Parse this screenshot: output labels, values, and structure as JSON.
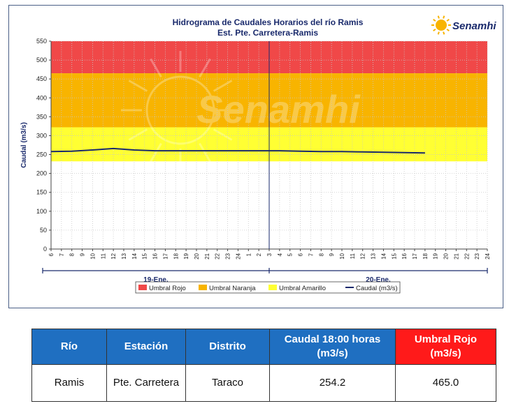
{
  "chart_data": {
    "type": "line",
    "title": "Hidrograma de Caudales Horarios del río Ramis",
    "subtitle": "Est. Pte. Carretera-Ramis",
    "ylabel": "Caudal  (m3/s)",
    "ylim": [
      0,
      550
    ],
    "yticks": [
      0,
      50,
      100,
      150,
      200,
      250,
      300,
      350,
      400,
      450,
      500,
      550
    ],
    "xticks": [
      "6",
      "7",
      "8",
      "9",
      "10",
      "11",
      "12",
      "13",
      "14",
      "15",
      "16",
      "17",
      "18",
      "19",
      "20",
      "21",
      "22",
      "23",
      "24",
      "1",
      "2",
      "3",
      "4",
      "5",
      "6",
      "7",
      "8",
      "9",
      "10",
      "11",
      "12",
      "13",
      "14",
      "15",
      "16",
      "17",
      "18",
      "19",
      "20",
      "21",
      "22",
      "23",
      "24"
    ],
    "day_labels": [
      "19-Ene.",
      "20-Ene."
    ],
    "thresholds": {
      "amarillo": 232,
      "naranja": 322,
      "rojo": 465,
      "max": 550
    },
    "series": [
      {
        "name": "Caudal (m3/s)",
        "color": "#1a2a6c",
        "x_index": [
          0,
          2,
          4,
          6,
          8,
          10,
          12,
          14,
          16,
          18,
          20,
          22,
          24,
          26,
          28,
          30,
          32,
          34,
          36
        ],
        "values": [
          258,
          259,
          262,
          266,
          262,
          260,
          260,
          260,
          260,
          260,
          260,
          260,
          259,
          258,
          258,
          257,
          256,
          255,
          254.2
        ]
      }
    ],
    "legend": [
      {
        "label": "Umbral Rojo",
        "color": "#f04848",
        "kind": "box"
      },
      {
        "label": "Umbral Naranja",
        "color": "#f8b400",
        "kind": "box"
      },
      {
        "label": "Umbral Amarillo",
        "color": "#ffff33",
        "kind": "box"
      },
      {
        "label": "Caudal (m3/s)",
        "color": "#1a2a6c",
        "kind": "line"
      }
    ],
    "legend_position": "bottom",
    "zone_colors": {
      "rojo": "#f04848",
      "naranja": "#f8b400",
      "amarillo": "#ffff33"
    },
    "grid": true
  },
  "logo": {
    "text": "Senamhi",
    "watermark": "Senamhi"
  },
  "table": {
    "headers": [
      "Río",
      "Estación",
      "Distrito",
      "Caudal  18:00 horas (m3/s)",
      "Umbral Rojo (m3/s)"
    ],
    "row": [
      "Ramis",
      "Pte. Carretera",
      "Taraco",
      "254.2",
      "465.0"
    ]
  }
}
